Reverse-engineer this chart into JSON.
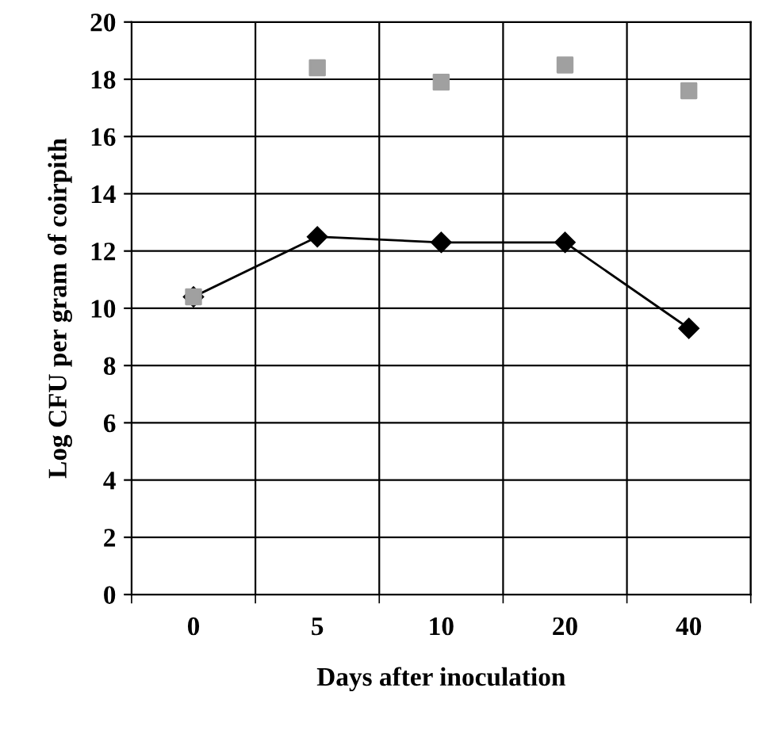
{
  "chart_data": {
    "type": "line",
    "xlabel": "Days after inoculation",
    "ylabel": "Log CFU per gram of coirpith",
    "categories": [
      "0",
      "5",
      "10",
      "20",
      "40"
    ],
    "series": [
      {
        "color": "#000000",
        "marker": "diamond",
        "values": [
          10.4,
          12.5,
          12.3,
          12.3,
          9.3
        ]
      },
      {
        "type": "scatter",
        "color": "#a0a0a0",
        "marker": "square",
        "values": [
          10.4,
          18.4,
          17.9,
          18.5,
          17.6
        ]
      }
    ],
    "ylim": [
      0,
      20
    ],
    "yticks": [
      0,
      2,
      4,
      6,
      8,
      10,
      12,
      14,
      16,
      18,
      20
    ],
    "grid": true,
    "legend": false
  }
}
